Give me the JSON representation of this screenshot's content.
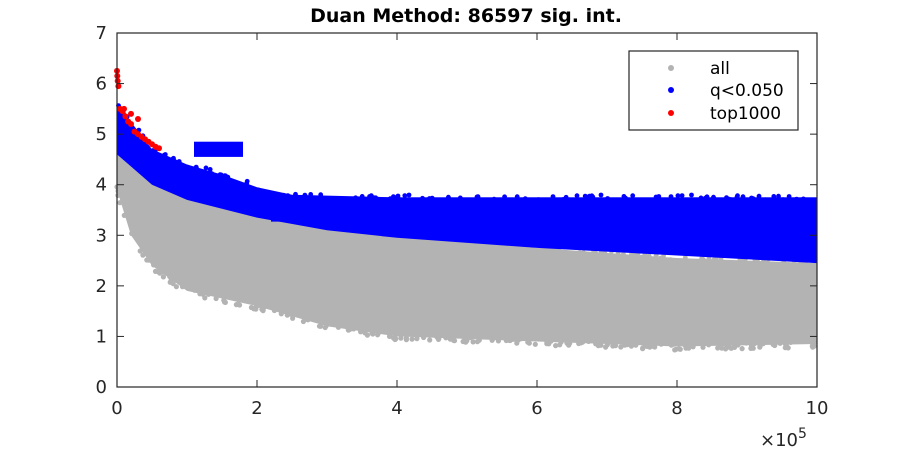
{
  "chart_data": {
    "type": "scatter",
    "title": "Duan Method: 86597 sig. int.",
    "xlabel": "",
    "ylabel": "",
    "xlim": [
      0,
      1000000
    ],
    "ylim": [
      0,
      7
    ],
    "x_ticks": [
      0,
      200000,
      400000,
      600000,
      800000,
      1000000
    ],
    "x_tick_labels": [
      "0",
      "2",
      "4",
      "6",
      "8",
      "10"
    ],
    "x_exponent_label": "×10",
    "x_exponent_power": "5",
    "y_ticks": [
      0,
      1,
      2,
      3,
      4,
      5,
      6,
      7
    ],
    "y_tick_labels": [
      "0",
      "1",
      "2",
      "3",
      "4",
      "5",
      "6",
      "7"
    ],
    "grid": false,
    "legend_position": "top-right",
    "series": [
      {
        "name": "all",
        "color": "#b3b3b3",
        "envelope_upper": [
          [
            0,
            5.2
          ],
          [
            20000,
            4.6
          ],
          [
            50000,
            4.3
          ],
          [
            100000,
            3.95
          ],
          [
            150000,
            3.7
          ],
          [
            200000,
            3.5
          ],
          [
            300000,
            3.2
          ],
          [
            400000,
            3.0
          ],
          [
            600000,
            2.75
          ],
          [
            800000,
            2.55
          ],
          [
            1000000,
            2.45
          ]
        ],
        "envelope_lower": [
          [
            0,
            3.9
          ],
          [
            20000,
            3.0
          ],
          [
            50000,
            2.4
          ],
          [
            100000,
            1.9
          ],
          [
            150000,
            1.75
          ],
          [
            200000,
            1.6
          ],
          [
            300000,
            1.2
          ],
          [
            400000,
            1.0
          ],
          [
            600000,
            0.9
          ],
          [
            800000,
            0.8
          ],
          [
            1000000,
            0.85
          ]
        ]
      },
      {
        "name": "q<0.050",
        "color": "#0000ff",
        "envelope_upper": [
          [
            0,
            5.6
          ],
          [
            50000,
            4.7
          ],
          [
            100000,
            4.4
          ],
          [
            150000,
            4.2
          ],
          [
            200000,
            3.95
          ],
          [
            250000,
            3.8
          ],
          [
            400000,
            3.75
          ],
          [
            1000000,
            3.75
          ]
        ],
        "envelope_lower": [
          [
            0,
            4.6
          ],
          [
            50000,
            4.0
          ],
          [
            100000,
            3.7
          ],
          [
            200000,
            3.35
          ],
          [
            300000,
            3.1
          ],
          [
            400000,
            2.95
          ],
          [
            600000,
            2.75
          ],
          [
            800000,
            2.6
          ],
          [
            1000000,
            2.45
          ]
        ],
        "bands": [
          [
            120000,
            4.55,
            4.85
          ],
          [
            200000,
            3.6,
            3.75
          ],
          [
            420000,
            3.3,
            3.4
          ],
          [
            700000,
            3.55,
            3.7
          ],
          [
            900000,
            3.3,
            3.35
          ]
        ]
      },
      {
        "name": "top1000",
        "color": "#ff0000",
        "points": [
          [
            0,
            6.25
          ],
          [
            500,
            6.15
          ],
          [
            1000,
            6.05
          ],
          [
            2000,
            5.95
          ],
          [
            4000,
            5.5
          ],
          [
            8000,
            5.45
          ],
          [
            12000,
            5.35
          ],
          [
            16000,
            5.25
          ],
          [
            20000,
            5.2
          ],
          [
            25000,
            5.05
          ],
          [
            30000,
            5.0
          ],
          [
            35000,
            4.95
          ],
          [
            40000,
            4.9
          ],
          [
            45000,
            4.85
          ],
          [
            50000,
            4.8
          ],
          [
            55000,
            4.75
          ],
          [
            60000,
            4.72
          ],
          [
            30000,
            5.3
          ],
          [
            20000,
            5.4
          ],
          [
            10000,
            5.5
          ]
        ]
      }
    ]
  }
}
